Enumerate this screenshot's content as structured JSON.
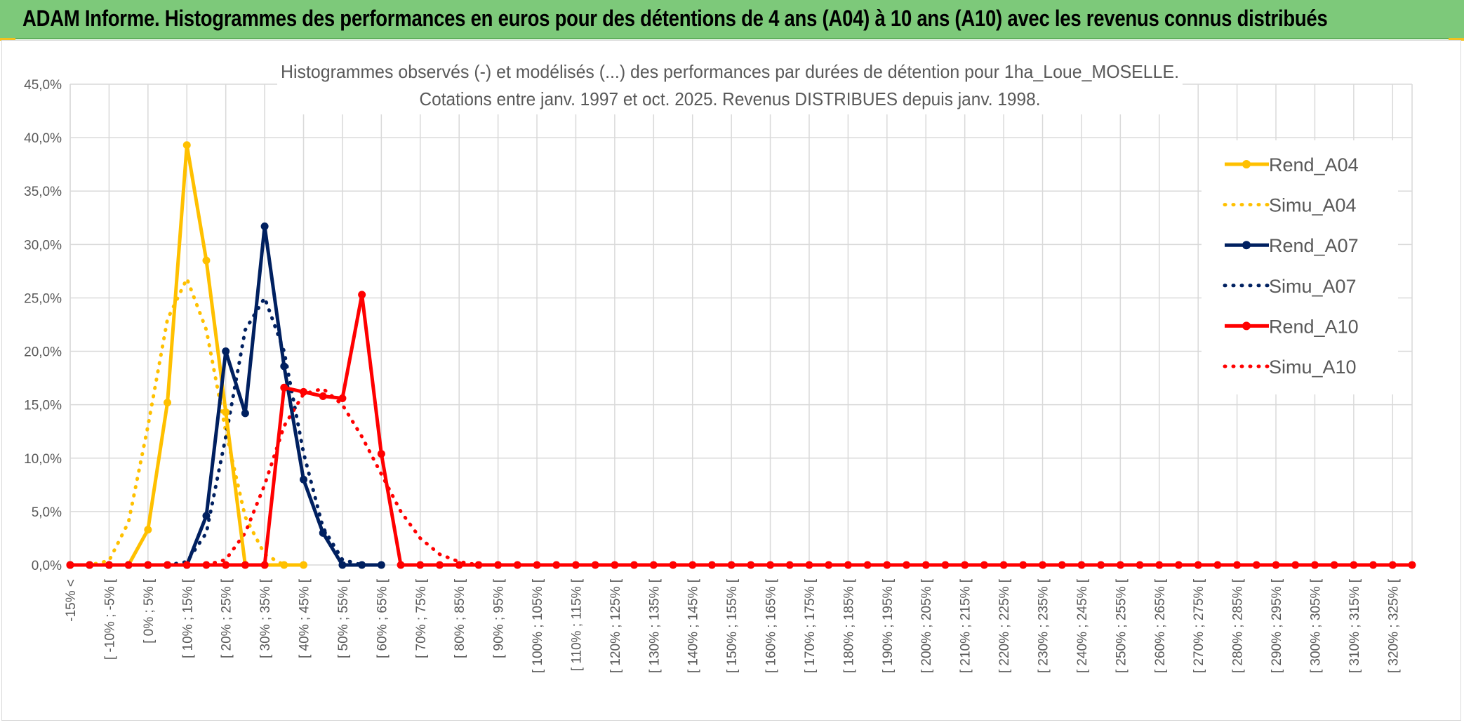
{
  "banner": {
    "title": "ADAM Informe. Histogrammes des performances en euros pour des détentions de 4 ans (A04) à 10 ans (A10) avec les revenus connus distribués"
  },
  "colors": {
    "banner": "#7dc97a",
    "A04": "#FFC000",
    "A07": "#002060",
    "A10": "#FF0000",
    "grid": "#d9d9d9"
  },
  "chart_data": {
    "type": "line",
    "title_line1": "Histogrammes observés (-) et modélisés (...) des performances par durées de détention pour 1ha_Loue_MOSELLE.",
    "title_line2": "Cotations entre janv. 1997 et oct. 2025. Revenus DISTRIBUES depuis janv. 1998.",
    "categories": [
      "-15% <",
      "[ -10% ; -5% [",
      "[ 0% ; 5% [",
      "[ 10% ; 15% [",
      "[ 20% ; 25% [",
      "[ 30% ; 35% [",
      "[ 40% ; 45% [",
      "[ 50% ; 55% [",
      "[ 60% ; 65% [",
      "[ 70% ; 75% [",
      "[ 80% ; 85% [",
      "[ 90% ; 95% [",
      "[ 100% ; 105% [",
      "[ 110% ; 115% [",
      "[ 120% ; 125% [",
      "[ 130% ; 135% [",
      "[ 140% ; 145% [",
      "[ 150% ; 155% [",
      "[ 160% ; 165% [",
      "[ 170% ; 175% [",
      "[ 180% ; 185% [",
      "[ 190% ; 195% [",
      "[ 200% ; 205% [",
      "[ 210% ; 215% [",
      "[ 220% ; 225% [",
      "[ 230% ; 235% [",
      "[ 240% ; 245% [",
      "[ 250% ; 255% [",
      "[ 260% ; 265% [",
      "[ 270% ; 275% [",
      "[ 280% ; 285% [",
      "[ 290% ; 295% [",
      "[ 300% ; 305% [",
      "[ 310% ; 315% [",
      "[ 320% ; 325% ["
    ],
    "x_unit": "%",
    "x_start": -15,
    "x_step": 5,
    "x_count": 70,
    "ylim": [
      0,
      45
    ],
    "yticks": [
      "0,0%",
      "5,0%",
      "10,0%",
      "15,0%",
      "20,0%",
      "25,0%",
      "30,0%",
      "35,0%",
      "40,0%",
      "45,0%"
    ],
    "grid": true,
    "legend_position": "right",
    "series": [
      {
        "name": "Rend_A04",
        "color": "#FFC000",
        "style": "solid",
        "points": [
          [
            -15,
            0
          ],
          [
            -10,
            0
          ],
          [
            -5,
            0
          ],
          [
            0,
            0
          ],
          [
            5,
            3.3
          ],
          [
            10,
            15.2
          ],
          [
            15,
            39.3
          ],
          [
            20,
            28.5
          ],
          [
            25,
            14.3
          ],
          [
            30,
            0
          ],
          [
            35,
            0
          ],
          [
            40,
            0
          ],
          [
            45,
            0
          ]
        ]
      },
      {
        "name": "Simu_A04",
        "color": "#FFC000",
        "style": "dotted",
        "points": [
          [
            -15,
            0
          ],
          [
            -10,
            0
          ],
          [
            -5,
            0.4
          ],
          [
            0,
            4
          ],
          [
            5,
            13
          ],
          [
            10,
            23
          ],
          [
            15,
            26.8
          ],
          [
            20,
            22
          ],
          [
            25,
            12.5
          ],
          [
            30,
            4.5
          ],
          [
            35,
            1
          ],
          [
            40,
            0
          ]
        ]
      },
      {
        "name": "Rend_A07",
        "color": "#002060",
        "style": "solid",
        "points": [
          [
            -15,
            0
          ],
          [
            -10,
            0
          ],
          [
            -5,
            0
          ],
          [
            0,
            0
          ],
          [
            5,
            0
          ],
          [
            10,
            0
          ],
          [
            15,
            0
          ],
          [
            20,
            4.6
          ],
          [
            25,
            20
          ],
          [
            30,
            14.2
          ],
          [
            35,
            31.7
          ],
          [
            40,
            18.6
          ],
          [
            45,
            8
          ],
          [
            50,
            3
          ],
          [
            55,
            0
          ],
          [
            60,
            0
          ],
          [
            65,
            0
          ]
        ]
      },
      {
        "name": "Simu_A07",
        "color": "#002060",
        "style": "dotted",
        "points": [
          [
            10,
            0
          ],
          [
            15,
            0.3
          ],
          [
            20,
            3
          ],
          [
            25,
            12
          ],
          [
            30,
            22
          ],
          [
            35,
            25
          ],
          [
            40,
            20
          ],
          [
            45,
            10.5
          ],
          [
            50,
            3.5
          ],
          [
            55,
            0.5
          ],
          [
            60,
            0
          ]
        ]
      },
      {
        "name": "Rend_A10",
        "color": "#FF0000",
        "style": "solid",
        "points": [
          [
            -15,
            0
          ],
          [
            -10,
            0
          ],
          [
            -5,
            0
          ],
          [
            0,
            0
          ],
          [
            5,
            0
          ],
          [
            10,
            0
          ],
          [
            15,
            0
          ],
          [
            20,
            0
          ],
          [
            25,
            0
          ],
          [
            30,
            0
          ],
          [
            35,
            0
          ],
          [
            40,
            16.6
          ],
          [
            45,
            16.2
          ],
          [
            50,
            15.8
          ],
          [
            55,
            15.6
          ],
          [
            60,
            25.3
          ],
          [
            65,
            10.4
          ],
          [
            70,
            0
          ]
        ]
      },
      {
        "name": "Simu_A10",
        "color": "#FF0000",
        "style": "dotted",
        "points": [
          [
            20,
            0
          ],
          [
            25,
            0.5
          ],
          [
            30,
            3
          ],
          [
            35,
            7.5
          ],
          [
            40,
            13
          ],
          [
            45,
            16
          ],
          [
            50,
            16.5
          ],
          [
            55,
            15
          ],
          [
            60,
            12
          ],
          [
            65,
            8.5
          ],
          [
            70,
            5
          ],
          [
            75,
            2.5
          ],
          [
            80,
            1
          ],
          [
            85,
            0.3
          ],
          [
            90,
            0
          ]
        ]
      }
    ]
  }
}
